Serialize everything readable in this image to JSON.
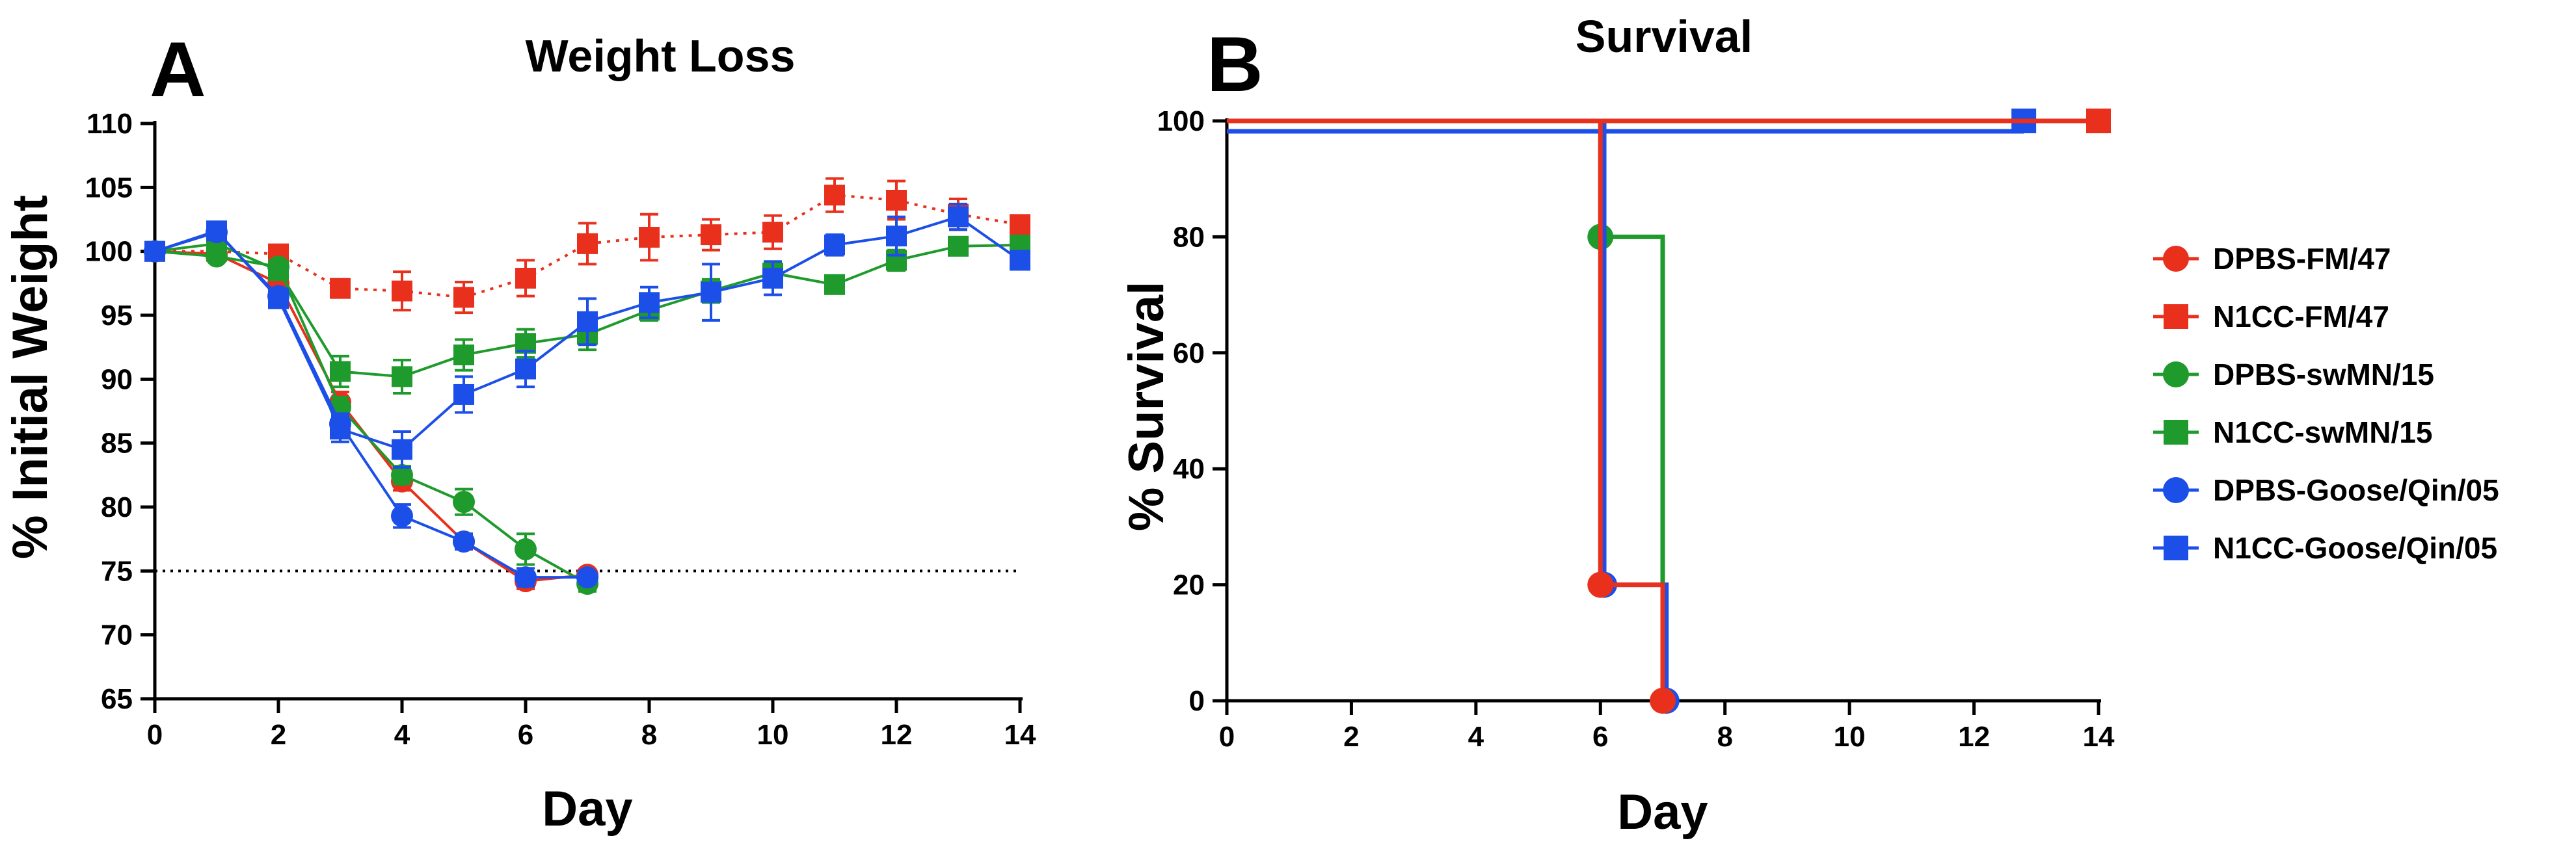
{
  "panel_labels": [
    "A",
    "B"
  ],
  "chart_data": [
    {
      "type": "line",
      "title": "Weight Loss",
      "xlabel": "Day",
      "ylabel": "% Initial Weight",
      "xlim": [
        0,
        14
      ],
      "ylim": [
        65,
        110
      ],
      "xticks": [
        "0",
        "2",
        "4",
        "6",
        "8",
        "10",
        "12",
        "14"
      ],
      "yticks": [
        "65",
        "70",
        "75",
        "80",
        "85",
        "90",
        "95",
        "100",
        "105",
        "110"
      ],
      "reference_line": {
        "y": 75,
        "style": "dotted"
      },
      "series": [
        {
          "name": "DPBS-FM/47",
          "color": "#e8301c",
          "marker": "circle",
          "line": "solid",
          "x": [
            0,
            1,
            2,
            3,
            4,
            5,
            6,
            7
          ],
          "y": [
            100,
            99.8,
            97.5,
            88.2,
            82.0,
            77.3,
            74.2,
            74.7
          ],
          "err": [
            0.3,
            0.5,
            0.6,
            0.8,
            0.7,
            0.6,
            0.6,
            0.4
          ]
        },
        {
          "name": "N1CC-FM/47",
          "color": "#e8301c",
          "marker": "square",
          "line": "dotted",
          "x": [
            0,
            1,
            2,
            3,
            4,
            5,
            6,
            7,
            8,
            9,
            10,
            11,
            12,
            13,
            14
          ],
          "y": [
            100,
            100,
            99.8,
            97.1,
            96.9,
            96.4,
            97.9,
            100.6,
            101.1,
            101.3,
            101.5,
            104.4,
            104.0,
            102.9,
            102.1
          ],
          "err": [
            0.3,
            0.4,
            0.5,
            0.5,
            1.5,
            1.2,
            1.4,
            1.6,
            1.8,
            1.2,
            1.3,
            1.3,
            1.5,
            1.2,
            0.6
          ]
        },
        {
          "name": "DPBS-swMN/15",
          "color": "#1f9a2c",
          "marker": "circle",
          "line": "solid",
          "x": [
            0,
            1,
            2,
            3,
            4,
            5,
            6,
            7
          ],
          "y": [
            100,
            99.6,
            98.8,
            87.8,
            82.5,
            80.4,
            76.7,
            74.0
          ],
          "err": [
            0.3,
            0.4,
            0.5,
            0.8,
            0.7,
            1.0,
            1.2,
            0.6
          ]
        },
        {
          "name": "N1CC-swMN/15",
          "color": "#1f9a2c",
          "marker": "square",
          "line": "solid",
          "x": [
            0,
            1,
            2,
            3,
            4,
            5,
            6,
            7,
            8,
            9,
            10,
            11,
            12,
            13,
            14
          ],
          "y": [
            100,
            100.6,
            98.5,
            90.6,
            90.2,
            91.9,
            92.8,
            93.5,
            95.4,
            96.9,
            98.3,
            97.4,
            99.3,
            100.4,
            100.5
          ],
          "err": [
            0.3,
            0.5,
            0.6,
            1.2,
            1.3,
            1.2,
            1.1,
            1.2,
            0.8,
            0.9,
            0.9,
            0.6,
            0.8,
            0.7,
            0.5
          ]
        },
        {
          "name": "DPBS-Goose/Qin/05",
          "color": "#1c4fe8",
          "marker": "circle",
          "line": "solid",
          "x": [
            0,
            1,
            2,
            3,
            4,
            5,
            6,
            7
          ],
          "y": [
            100,
            101.5,
            96.5,
            86.5,
            79.3,
            77.3,
            74.5,
            74.5
          ],
          "err": [
            0.3,
            0.5,
            0.6,
            0.8,
            0.9,
            0.6,
            0.7,
            0.5
          ]
        },
        {
          "name": "N1CC-Goose/Qin/05",
          "color": "#1c4fe8",
          "marker": "square",
          "line": "solid",
          "x": [
            0,
            1,
            2,
            3,
            4,
            5,
            6,
            7,
            8,
            9,
            10,
            11,
            12,
            13,
            14
          ],
          "y": [
            100,
            101.6,
            96.3,
            86.1,
            84.5,
            88.8,
            90.8,
            94.5,
            96.0,
            96.8,
            97.9,
            100.5,
            101.2,
            102.7,
            99.3
          ],
          "err": [
            0.3,
            0.5,
            0.6,
            1.0,
            1.4,
            1.4,
            1.4,
            1.8,
            1.2,
            2.2,
            1.3,
            0.8,
            1.5,
            1.0,
            0.6
          ]
        }
      ]
    },
    {
      "type": "line",
      "subtype": "step",
      "title": "Survival",
      "xlabel": "Day",
      "ylabel": "% Survival",
      "xlim": [
        0,
        14
      ],
      "ylim": [
        0,
        100
      ],
      "xticks": [
        "0",
        "2",
        "4",
        "6",
        "8",
        "10",
        "12",
        "14"
      ],
      "yticks": [
        "0",
        "20",
        "40",
        "60",
        "80",
        "100"
      ],
      "legend_position": "right",
      "series": [
        {
          "name": "DPBS-FM/47",
          "color": "#e8301c",
          "marker": "circle",
          "steps": [
            [
              0,
              100
            ],
            [
              6,
              20
            ],
            [
              7,
              0
            ]
          ],
          "markers": [
            [
              6,
              20
            ],
            [
              7,
              0
            ]
          ],
          "offset": 0
        },
        {
          "name": "N1CC-FM/47",
          "color": "#e8301c",
          "marker": "square",
          "steps": [
            [
              0,
              100
            ],
            [
              14,
              100
            ]
          ],
          "markers": [
            [
              14,
              100
            ]
          ],
          "offset": 0
        },
        {
          "name": "DPBS-swMN/15",
          "color": "#1f9a2c",
          "marker": "circle",
          "steps": [
            [
              0,
              100
            ],
            [
              6,
              80
            ],
            [
              7,
              0
            ]
          ],
          "markers": [
            [
              6,
              80
            ]
          ],
          "offset": 0
        },
        {
          "name": "N1CC-swMN/15",
          "color": "#1f9a2c",
          "marker": "square",
          "steps": [
            [
              0,
              100
            ],
            [
              14,
              100
            ]
          ],
          "markers": [
            [
              14,
              100
            ]
          ],
          "offset": 0
        },
        {
          "name": "DPBS-Goose/Qin/05",
          "color": "#1c4fe8",
          "marker": "circle",
          "steps": [
            [
              0,
              100
            ],
            [
              6,
              20
            ],
            [
              7,
              0
            ]
          ],
          "markers": [
            [
              6,
              20
            ],
            [
              7,
              0
            ]
          ],
          "offset": 0.06
        },
        {
          "name": "N1CC-Goose/Qin/05",
          "color": "#1c4fe8",
          "marker": "square",
          "steps": [
            [
              0,
              100
            ],
            [
              14,
              100
            ]
          ],
          "markers": [
            [
              14,
              100
            ]
          ],
          "offset": -1.2
        }
      ]
    }
  ]
}
